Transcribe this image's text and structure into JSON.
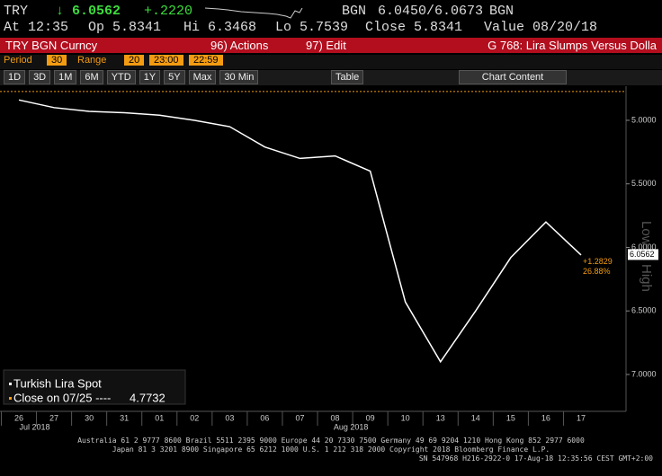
{
  "header": {
    "ticker": "TRY",
    "last": "↓ 6.0562",
    "change": "+.2220",
    "bid_source": "BGN",
    "bid_ask": "6.0450/6.0673",
    "ask_source": "BGN",
    "at": "At 12:35",
    "open": "Op 5.8341",
    "high": "Hi 6.3468",
    "low": "Lo 5.7539",
    "close": "Close 5.8341",
    "value": "Value 08/20/18",
    "security": "TRY BGN Curncy",
    "actions": "96) Actions",
    "edit": "97) Edit",
    "title": "G 768: Lira Slumps Versus Dolla"
  },
  "toolbar": {
    "period_label": "Period",
    "period": "30",
    "range_label": "Range",
    "range": "20",
    "start": "23:00",
    "end": "22:59",
    "buttons": [
      "1D",
      "3D",
      "1M",
      "6M",
      "YTD",
      "1Y",
      "5Y",
      "Max",
      "30 Min"
    ],
    "table": "Table",
    "chart_content": "Chart Content"
  },
  "chart_data": {
    "type": "line",
    "inverted": true,
    "categories": [
      "26",
      "27",
      "30",
      "31",
      "01",
      "02",
      "03",
      "06",
      "07",
      "08",
      "09",
      "10",
      "13",
      "14",
      "15",
      "16",
      "17"
    ],
    "month_labels": [
      {
        "index": 1,
        "label": "Jul 2018"
      },
      {
        "index": 10,
        "label": "Aug 2018"
      }
    ],
    "series": [
      {
        "name": "Turkish Lira Spot",
        "color": "#ffffff",
        "values": [
          4.84,
          4.9,
          4.93,
          4.94,
          4.96,
          5.0,
          5.05,
          5.21,
          5.3,
          5.28,
          5.4,
          6.43,
          6.9,
          6.5,
          6.08,
          5.8,
          6.06
        ]
      }
    ],
    "ylim": [
      4.76,
      7.29
    ],
    "yticks": [
      {
        "value": 5.0,
        "label": "5.0000"
      },
      {
        "value": 5.5,
        "label": "5.5000"
      },
      {
        "value": 6.0,
        "label": "6.0000"
      },
      {
        "value": 6.5,
        "label": "6.5000"
      },
      {
        "value": 7.0,
        "label": "7.0000"
      }
    ],
    "last_value": {
      "value": 6.0562,
      "label": "6.0562"
    },
    "change_label": "+1.2829",
    "change_pct": "26.88%",
    "axis_top": "Low",
    "axis_bottom": "High",
    "reference_label": "Close on 07/25 ----",
    "reference_value": 4.7732,
    "reference_color": "#f39c12"
  },
  "footer": {
    "line1": "Australia 61 2 9777 8600 Brazil 5511 2395 9000 Europe 44 20 7330 7500 Germany 49 69 9204 1210 Hong Kong 852 2977 6000",
    "line2": "Japan 81 3 3201 8900        Singapore 65 6212 1000       U.S. 1 212 318 2000            Copyright 2018 Bloomberg Finance L.P.",
    "line3": "SN 547968 H216-2922-0 17-Aug-18 12:35:56 CEST GMT+2:00"
  }
}
